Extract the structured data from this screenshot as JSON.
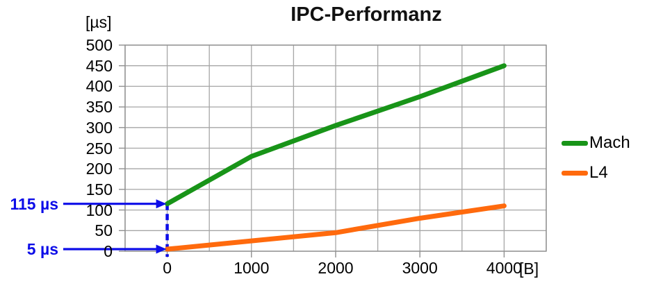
{
  "chart_data": {
    "type": "line",
    "title": "IPC-Performanz",
    "y_axis_unit": "[µs]",
    "x_axis_unit": "[B]",
    "x": [
      0,
      1000,
      2000,
      3000,
      4000
    ],
    "series": [
      {
        "name": "Mach",
        "color": "#189418",
        "values": [
          115,
          230,
          305,
          375,
          450
        ]
      },
      {
        "name": "L4",
        "color": "#FF6A0D",
        "values": [
          5,
          25,
          45,
          80,
          110
        ]
      }
    ],
    "xlim": [
      -500,
      4500
    ],
    "ylim": [
      0,
      500
    ],
    "x_ticks": [
      0,
      1000,
      2000,
      3000,
      4000
    ],
    "y_ticks": [
      0,
      50,
      100,
      150,
      200,
      250,
      300,
      350,
      400,
      450,
      500
    ],
    "grid": {
      "x_step": 500,
      "y_step": 50,
      "color": "#A6A6A6",
      "border_color": "#8F8F8F",
      "visible": true
    },
    "legend": {
      "position": "right"
    },
    "annotations": [
      {
        "label": "115 µs",
        "points_to": {
          "x": 0,
          "y": 115
        },
        "color": "#0D0DE8"
      },
      {
        "label": "5 µs",
        "points_to": {
          "x": 0,
          "y": 5
        },
        "color": "#0D0DE8"
      }
    ],
    "guide_line": {
      "x": 0,
      "y_from": 115,
      "y_to": 0,
      "style": "dashed",
      "color": "#0D0DE8"
    }
  }
}
